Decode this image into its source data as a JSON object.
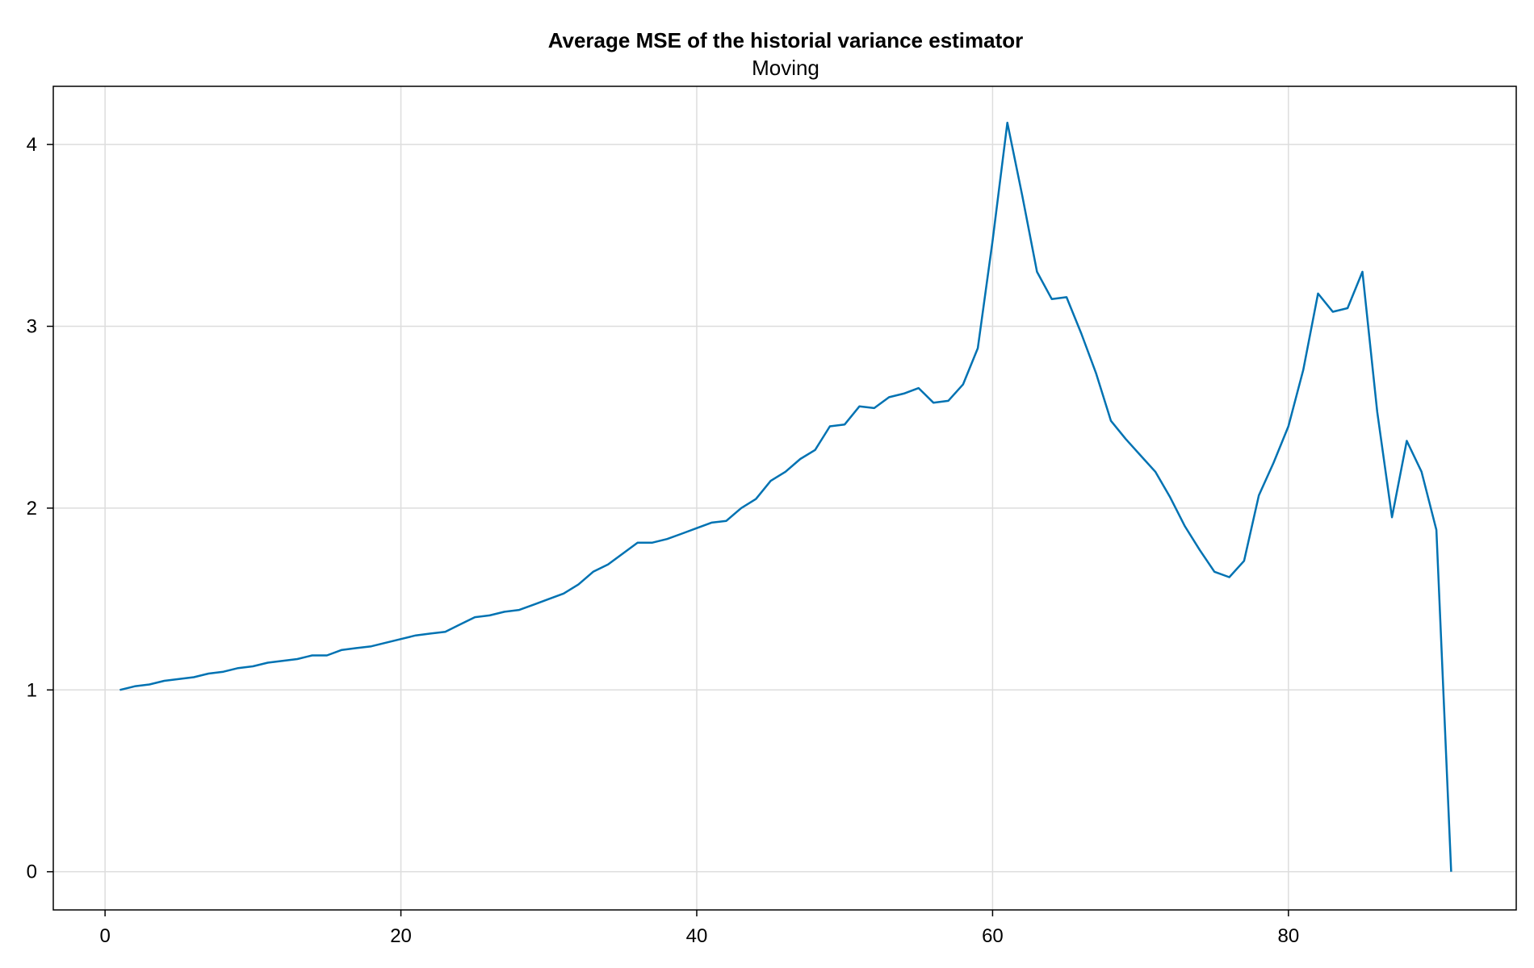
{
  "chart_data": {
    "type": "line",
    "title": "Average MSE of the historial variance estimator",
    "subtitle": "Moving",
    "xlabel": "",
    "ylabel": "",
    "xlim": [
      -3.5,
      95.4
    ],
    "ylim": [
      -0.21,
      4.32
    ],
    "xticks": [
      0,
      20,
      40,
      60,
      80
    ],
    "yticks": [
      0,
      1,
      2,
      3,
      4
    ],
    "grid": true,
    "legend": "none",
    "colors": {
      "line": "#0072b2",
      "grid": "#dddddd",
      "axis": "#000000"
    },
    "series": [
      {
        "x": [
          1,
          2,
          3,
          4,
          5,
          6,
          7,
          8,
          9,
          10,
          11,
          12,
          13,
          14,
          15,
          16,
          17,
          18,
          19,
          20,
          21,
          22,
          23,
          24,
          25,
          26,
          27,
          28,
          29,
          30,
          31,
          32,
          33,
          34,
          35,
          36,
          37,
          38,
          39,
          40,
          41,
          42,
          43,
          44,
          45,
          46,
          47,
          48,
          49,
          50,
          51,
          52,
          53,
          54,
          55,
          56,
          57,
          58,
          59,
          60,
          61,
          62,
          63,
          64,
          65,
          66,
          67,
          68,
          69,
          70,
          71,
          72,
          73,
          74,
          75,
          76,
          77,
          78,
          79,
          80,
          81,
          82,
          83,
          84,
          85,
          86,
          87,
          88,
          89,
          90,
          91
        ],
        "values": [
          1.0,
          1.02,
          1.03,
          1.05,
          1.06,
          1.07,
          1.09,
          1.1,
          1.12,
          1.13,
          1.15,
          1.16,
          1.17,
          1.19,
          1.19,
          1.22,
          1.23,
          1.24,
          1.26,
          1.28,
          1.3,
          1.31,
          1.32,
          1.36,
          1.4,
          1.41,
          1.43,
          1.44,
          1.47,
          1.5,
          1.53,
          1.58,
          1.65,
          1.69,
          1.75,
          1.81,
          1.81,
          1.83,
          1.86,
          1.89,
          1.92,
          1.93,
          2.0,
          2.05,
          2.15,
          2.2,
          2.27,
          2.32,
          2.45,
          2.46,
          2.56,
          2.55,
          2.61,
          2.63,
          2.66,
          2.58,
          2.59,
          2.68,
          2.88,
          3.47,
          4.12,
          3.72,
          3.3,
          3.15,
          3.16,
          2.96,
          2.74,
          2.48,
          2.38,
          2.29,
          2.2,
          2.06,
          1.9,
          1.77,
          1.65,
          1.62,
          1.71,
          2.07,
          2.25,
          2.45,
          2.76,
          3.18,
          3.08,
          3.1,
          3.3,
          2.53,
          1.95,
          2.37,
          2.2,
          1.88,
          0.0
        ]
      }
    ]
  }
}
